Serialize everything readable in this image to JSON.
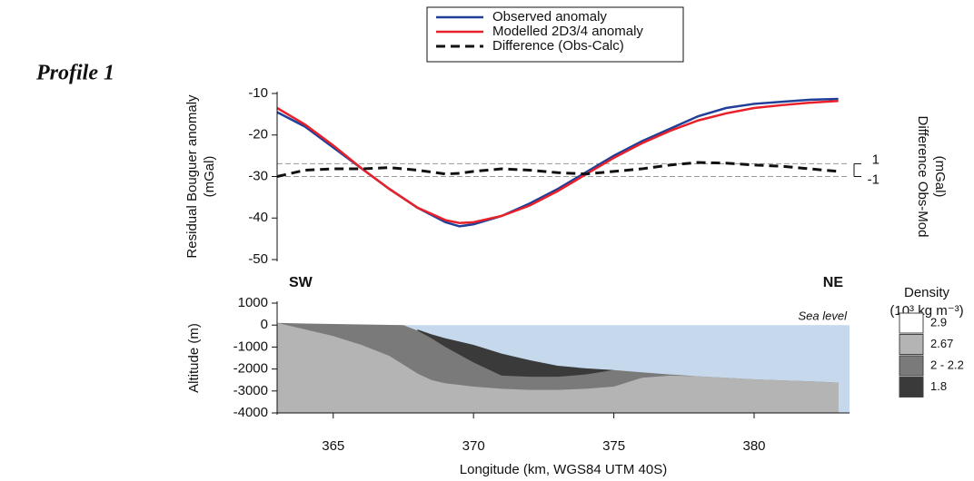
{
  "profile": "Profile 1",
  "chart_data": [
    {
      "type": "line",
      "y_label": [
        "Residual Bouguer anomaly",
        "(mGal)"
      ],
      "y2_label": [
        "Difference Obs-Mod",
        "(mGal)"
      ],
      "x": [
        363,
        364,
        365,
        366,
        367,
        368,
        369,
        369.5,
        370,
        371,
        372,
        373,
        374,
        375,
        376,
        377,
        378,
        379,
        380,
        381,
        382,
        383
      ],
      "series": [
        {
          "name": "Observed anomaly",
          "color": "#1f3f99",
          "values": [
            -14.5,
            -18,
            -23,
            -28,
            -33,
            -37.5,
            -41,
            -42,
            -41.5,
            -39.5,
            -36.5,
            -33,
            -29,
            -25,
            -21.5,
            -18.5,
            -15.5,
            -13.5,
            -12.5,
            -12,
            -11.5,
            -11.3
          ]
        },
        {
          "name": "Modelled 2D3/4 anomaly",
          "color": "#e8202a",
          "values": [
            -13.5,
            -17.5,
            -22.5,
            -28,
            -33,
            -37.5,
            -40.5,
            -41.2,
            -41,
            -39.5,
            -37,
            -33.5,
            -29.5,
            -25.5,
            -22,
            -19,
            -16.5,
            -14.8,
            -13.5,
            -12.8,
            -12.2,
            -11.8
          ]
        },
        {
          "name": "Difference (Obs-Calc)",
          "color": "#111111",
          "dashed": true,
          "axis": "y2",
          "values": [
            -1,
            0,
            0.2,
            0.2,
            0.4,
            0,
            -0.6,
            -0.5,
            -0.2,
            0.2,
            0,
            -0.4,
            -0.6,
            -0.2,
            0.2,
            0.8,
            1.2,
            1.1,
            0.8,
            0.6,
            0.2,
            -0.2
          ]
        }
      ],
      "xlim": [
        363,
        383.4
      ],
      "ylim": [
        -50,
        -10
      ],
      "yticks": [
        -10,
        -20,
        -30,
        -40,
        -50
      ],
      "y2lim": [
        -14,
        12
      ],
      "y2ticks": [
        1,
        -1
      ]
    },
    {
      "type": "layers",
      "y_label": "Altitude (m)",
      "x_label": "Longitude (km, WGS84 UTM 40S)",
      "left_label": "SW",
      "right_label": "NE",
      "sea_label": "Sea level",
      "sea_level": 0,
      "sea_color": "#c6d9ec",
      "legend_title": [
        "Density",
        "(10³ kg m⁻³)"
      ],
      "x": [
        363,
        364,
        365,
        366,
        367,
        367.5,
        368,
        368.5,
        369,
        370,
        371,
        372,
        373,
        374,
        375,
        376,
        377,
        378,
        379,
        380,
        381,
        382,
        383
      ],
      "series": [
        {
          "name": "2.9",
          "color": "#ffffff"
        },
        {
          "name": "2.67",
          "color": "#b4b4b4",
          "values": [
            100,
            -200,
            -500,
            -900,
            -1400,
            -1800,
            -2200,
            -2500,
            -2650,
            -2800,
            -2900,
            -2950,
            -2950,
            -2900,
            -2800,
            -2400,
            -2300,
            -2330,
            -2400,
            -2470,
            -2520,
            -2560,
            -2620
          ]
        },
        {
          "name": "2 - 2.2",
          "color": "#7a7a7a",
          "values": [
            100,
            70,
            50,
            30,
            10,
            0,
            -250,
            -600,
            -1000,
            -1700,
            -2300,
            -2350,
            -2350,
            -2250,
            -2050,
            -2150,
            -2250,
            -2330,
            -2400,
            -2470,
            -2520,
            -2560,
            -2620
          ]
        },
        {
          "name": "1.8",
          "color": "#3a3a3a",
          "values": [
            null,
            null,
            null,
            null,
            null,
            null,
            -200,
            -420,
            -600,
            -900,
            -1300,
            -1600,
            -1850,
            -1970,
            -2050,
            null,
            null,
            null,
            null,
            null,
            null,
            null,
            null
          ]
        }
      ],
      "xlim": [
        363,
        383.4
      ],
      "xticks": [
        365,
        370,
        375,
        380
      ],
      "ylim": [
        -4000,
        1000
      ],
      "yticks": [
        1000,
        0,
        -1000,
        -2000,
        -3000,
        -4000
      ]
    }
  ]
}
